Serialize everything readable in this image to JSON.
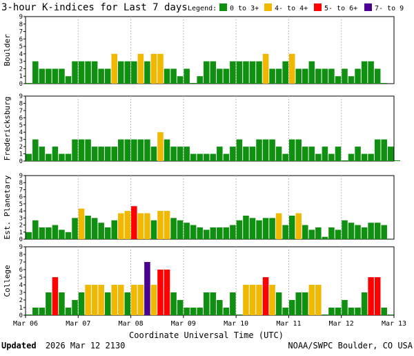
{
  "title": "3-hour K-indices for Last 7 days",
  "legend": {
    "label": "Legend:",
    "entries": [
      {
        "text": "0 to 3+",
        "color": "#109010"
      },
      {
        "text": "4- to 4+",
        "color": "#f0b800"
      },
      {
        "text": "5- to 6+",
        "color": "#ff0000"
      },
      {
        "text": "7- to 9",
        "color": "#4a0090"
      }
    ]
  },
  "xlabel": "Coordinate Universal Time (UTC)",
  "x_ticks": [
    "Mar 06",
    "Mar 07",
    "Mar 08",
    "Mar 09",
    "Mar 10",
    "Mar 11",
    "Mar 12",
    "Mar 13"
  ],
  "footer": {
    "updated_label": "Updated",
    "updated_value": "2026 Mar 12 2130",
    "source": "NOAA/SWPC Boulder, CO USA"
  },
  "chart_data": [
    {
      "type": "bar",
      "station": "Boulder",
      "ylim": [
        0,
        9
      ],
      "y_ticks": [
        "0",
        "1",
        "2",
        "3",
        "4",
        "5",
        "6",
        "7",
        "8",
        "9"
      ],
      "values": [
        0,
        3,
        2,
        2,
        2,
        2,
        1,
        3,
        3,
        3,
        3,
        2,
        2,
        4,
        3,
        3,
        3,
        4,
        3,
        4,
        4,
        2,
        2,
        1,
        2,
        0,
        1,
        3,
        3,
        2,
        2,
        3,
        3,
        3,
        3,
        3,
        4,
        2,
        2,
        3,
        4,
        2,
        2,
        3,
        2,
        2,
        2,
        1,
        2,
        1,
        2,
        3,
        3,
        2,
        0
      ]
    },
    {
      "type": "bar",
      "station": "Fredericksburg",
      "ylim": [
        0,
        9
      ],
      "y_ticks": [
        "0",
        "1",
        "2",
        "3",
        "4",
        "5",
        "6",
        "7",
        "8",
        "9"
      ],
      "values": [
        1,
        3,
        2,
        1,
        2,
        1,
        1,
        3,
        3,
        3,
        2,
        2,
        2,
        2,
        3,
        3,
        3,
        3,
        3,
        2,
        4,
        3,
        2,
        2,
        2,
        1,
        1,
        1,
        1,
        2,
        1,
        2,
        3,
        2,
        2,
        3,
        3,
        3,
        2,
        1,
        3,
        3,
        2,
        2,
        1,
        2,
        1,
        2,
        0,
        1,
        2,
        1,
        1,
        3,
        3,
        2,
        0
      ]
    },
    {
      "type": "bar",
      "station": "Est. Planetary",
      "ylim": [
        0,
        9
      ],
      "y_ticks": [
        "0",
        "1",
        "2",
        "3",
        "4",
        "5",
        "6",
        "7",
        "8",
        "9"
      ],
      "values": [
        1,
        2.67,
        1.67,
        1.67,
        2,
        1.33,
        1,
        3,
        4.33,
        3.33,
        3,
        2.33,
        1.67,
        2.67,
        3.67,
        4,
        4.67,
        3.67,
        3.67,
        2.67,
        4,
        4,
        3,
        2.67,
        2.33,
        2,
        1.67,
        1.33,
        1.67,
        1.67,
        1.67,
        2,
        2.67,
        3.33,
        3,
        2.67,
        3,
        3,
        3.67,
        2,
        3.33,
        3.67,
        2,
        1.33,
        1.67,
        0.33,
        1.67,
        1.33,
        2.67,
        2.33,
        2,
        1.67,
        2.33,
        2.33,
        2
      ]
    },
    {
      "type": "bar",
      "station": "College",
      "ylim": [
        0,
        9
      ],
      "y_ticks": [
        "0",
        "1",
        "2",
        "3",
        "4",
        "5",
        "6",
        "7",
        "8",
        "9"
      ],
      "values": [
        0,
        1,
        1,
        3,
        5,
        3,
        1,
        2,
        3,
        4,
        4,
        4,
        3,
        4,
        4,
        3,
        4,
        4,
        7,
        4,
        6,
        6,
        3,
        2,
        1,
        1,
        1,
        3,
        3,
        2,
        1,
        3,
        0,
        4,
        4,
        4,
        5,
        4,
        3,
        1,
        2,
        3,
        3,
        4,
        4,
        0,
        1,
        1,
        2,
        1,
        1,
        3,
        5,
        5,
        1,
        0
      ]
    }
  ]
}
